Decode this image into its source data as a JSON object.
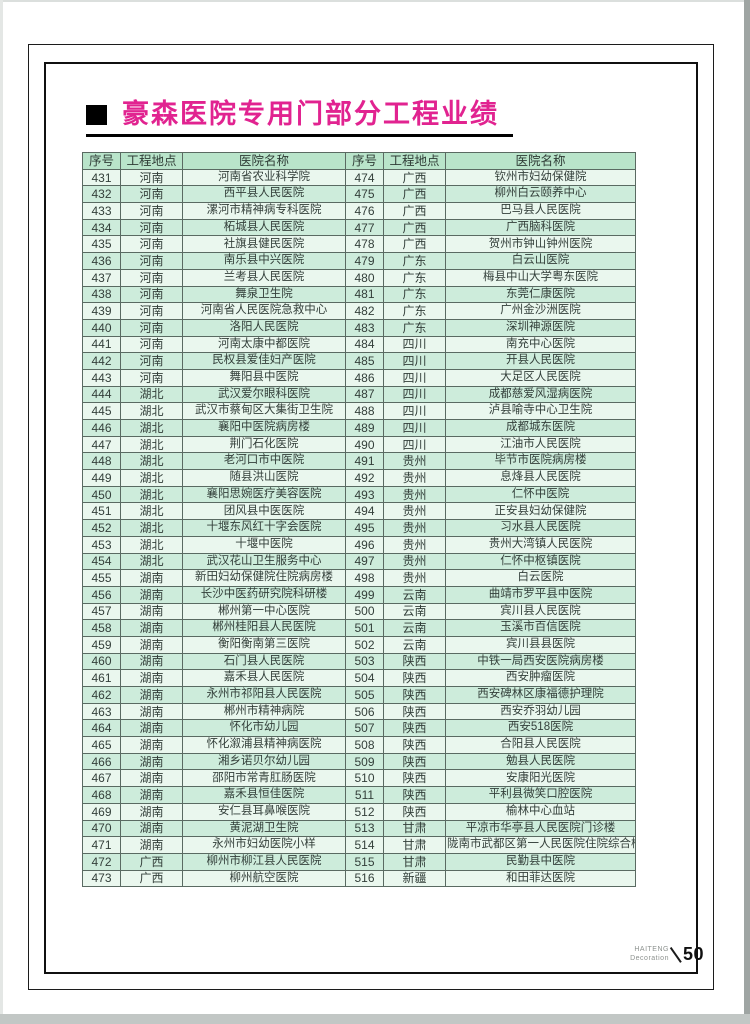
{
  "page": {
    "title": "豪森医院专用门部分工程业绩",
    "accent_color": "#e12390",
    "footer": {
      "brand_line1": "HAITENG",
      "brand_line2": "Decoration",
      "page_number": "50"
    }
  },
  "table": {
    "headers": [
      "序号",
      "工程地点",
      "医院名称"
    ],
    "left_rows": [
      [
        "431",
        "河南",
        "河南省农业科学院"
      ],
      [
        "432",
        "河南",
        "西平县人民医院"
      ],
      [
        "433",
        "河南",
        "漯河市精神病专科医院"
      ],
      [
        "434",
        "河南",
        "柘城县人民医院"
      ],
      [
        "435",
        "河南",
        "社旗县健民医院"
      ],
      [
        "436",
        "河南",
        "南乐县中兴医院"
      ],
      [
        "437",
        "河南",
        "兰考县人民医院"
      ],
      [
        "438",
        "河南",
        "舞泉卫生院"
      ],
      [
        "439",
        "河南",
        "河南省人民医院急救中心"
      ],
      [
        "440",
        "河南",
        "洛阳人民医院"
      ],
      [
        "441",
        "河南",
        "河南太康中都医院"
      ],
      [
        "442",
        "河南",
        "民权县爱佳妇产医院"
      ],
      [
        "443",
        "河南",
        "舞阳县中医院"
      ],
      [
        "444",
        "湖北",
        "武汉爱尔眼科医院"
      ],
      [
        "445",
        "湖北",
        "武汉市蔡甸区大集街卫生院"
      ],
      [
        "446",
        "湖北",
        "襄阳中医院病房楼"
      ],
      [
        "447",
        "湖北",
        "荆门石化医院"
      ],
      [
        "448",
        "湖北",
        "老河口市中医院"
      ],
      [
        "449",
        "湖北",
        "随县洪山医院"
      ],
      [
        "450",
        "湖北",
        "襄阳思婉医疗美容医院"
      ],
      [
        "451",
        "湖北",
        "团风县中医医院"
      ],
      [
        "452",
        "湖北",
        "十堰东风红十字会医院"
      ],
      [
        "453",
        "湖北",
        "十堰中医院"
      ],
      [
        "454",
        "湖北",
        "武汉花山卫生服务中心"
      ],
      [
        "455",
        "湖南",
        "新田妇幼保健院住院病房楼"
      ],
      [
        "456",
        "湖南",
        "长沙中医药研究院科研楼"
      ],
      [
        "457",
        "湖南",
        "郴州第一中心医院"
      ],
      [
        "458",
        "湖南",
        "郴州桂阳县人民医院"
      ],
      [
        "459",
        "湖南",
        "衡阳衡南第三医院"
      ],
      [
        "460",
        "湖南",
        "石门县人民医院"
      ],
      [
        "461",
        "湖南",
        "嘉禾县人民医院"
      ],
      [
        "462",
        "湖南",
        "永州市祁阳县人民医院"
      ],
      [
        "463",
        "湖南",
        "郴州市精神病院"
      ],
      [
        "464",
        "湖南",
        "怀化市幼儿园"
      ],
      [
        "465",
        "湖南",
        "怀化溆浦县精神病医院"
      ],
      [
        "466",
        "湖南",
        "湘乡诺贝尔幼儿园"
      ],
      [
        "467",
        "湖南",
        "邵阳市常青肛肠医院"
      ],
      [
        "468",
        "湖南",
        "嘉禾县恒佳医院"
      ],
      [
        "469",
        "湖南",
        "安仁县耳鼻喉医院"
      ],
      [
        "470",
        "湖南",
        "黄泥湖卫生院"
      ],
      [
        "471",
        "湖南",
        "永州市妇幼医院小样"
      ],
      [
        "472",
        "广西",
        "柳州市柳江县人民医院"
      ],
      [
        "473",
        "广西",
        "柳州航空医院"
      ]
    ],
    "right_rows": [
      [
        "474",
        "广西",
        "钦州市妇幼保健院"
      ],
      [
        "475",
        "广西",
        "柳州白云颐养中心"
      ],
      [
        "476",
        "广西",
        "巴马县人民医院"
      ],
      [
        "477",
        "广西",
        "广西脑科医院"
      ],
      [
        "478",
        "广西",
        "贺州市钟山钟州医院"
      ],
      [
        "479",
        "广东",
        "白云山医院"
      ],
      [
        "480",
        "广东",
        "梅县中山大学粤东医院"
      ],
      [
        "481",
        "广东",
        "东莞仁康医院"
      ],
      [
        "482",
        "广东",
        "广州金沙洲医院"
      ],
      [
        "483",
        "广东",
        "深圳神源医院"
      ],
      [
        "484",
        "四川",
        "南充中心医院"
      ],
      [
        "485",
        "四川",
        "开县人民医院"
      ],
      [
        "486",
        "四川",
        "大足区人民医院"
      ],
      [
        "487",
        "四川",
        "成都慈爱风湿病医院"
      ],
      [
        "488",
        "四川",
        "泸县喻寺中心卫生院"
      ],
      [
        "489",
        "四川",
        "成都城东医院"
      ],
      [
        "490",
        "四川",
        "江油市人民医院"
      ],
      [
        "491",
        "贵州",
        "毕节市医院病房楼"
      ],
      [
        "492",
        "贵州",
        "息烽县人民医院"
      ],
      [
        "493",
        "贵州",
        "仁怀中医院"
      ],
      [
        "494",
        "贵州",
        "正安县妇幼保健院"
      ],
      [
        "495",
        "贵州",
        "习水县人民医院"
      ],
      [
        "496",
        "贵州",
        "贵州大湾镇人民医院"
      ],
      [
        "497",
        "贵州",
        "仁怀中枢镇医院"
      ],
      [
        "498",
        "贵州",
        "白云医院"
      ],
      [
        "499",
        "云南",
        "曲靖市罗平县中医院"
      ],
      [
        "500",
        "云南",
        "宾川县人民医院"
      ],
      [
        "501",
        "云南",
        "玉溪市百信医院"
      ],
      [
        "502",
        "云南",
        "宾川县县医院"
      ],
      [
        "503",
        "陕西",
        "中铁一局西安医院病房楼"
      ],
      [
        "504",
        "陕西",
        "西安肿瘤医院"
      ],
      [
        "505",
        "陕西",
        "西安碑林区康福德护理院"
      ],
      [
        "506",
        "陕西",
        "西安乔羽幼儿园"
      ],
      [
        "507",
        "陕西",
        "西安518医院"
      ],
      [
        "508",
        "陕西",
        "合阳县人民医院"
      ],
      [
        "509",
        "陕西",
        "勉县人民医院"
      ],
      [
        "510",
        "陕西",
        "安康阳光医院"
      ],
      [
        "511",
        "陕西",
        "平利县微笑口腔医院"
      ],
      [
        "512",
        "陕西",
        "榆林中心血站"
      ],
      [
        "513",
        "甘肃",
        "平凉市华亭县人民医院门诊楼"
      ],
      [
        "514",
        "甘肃",
        "陇南市武都区第一人民医院住院综合楼"
      ],
      [
        "515",
        "甘肃",
        "民勤县中医院"
      ],
      [
        "516",
        "新疆",
        "和田菲达医院"
      ]
    ]
  }
}
